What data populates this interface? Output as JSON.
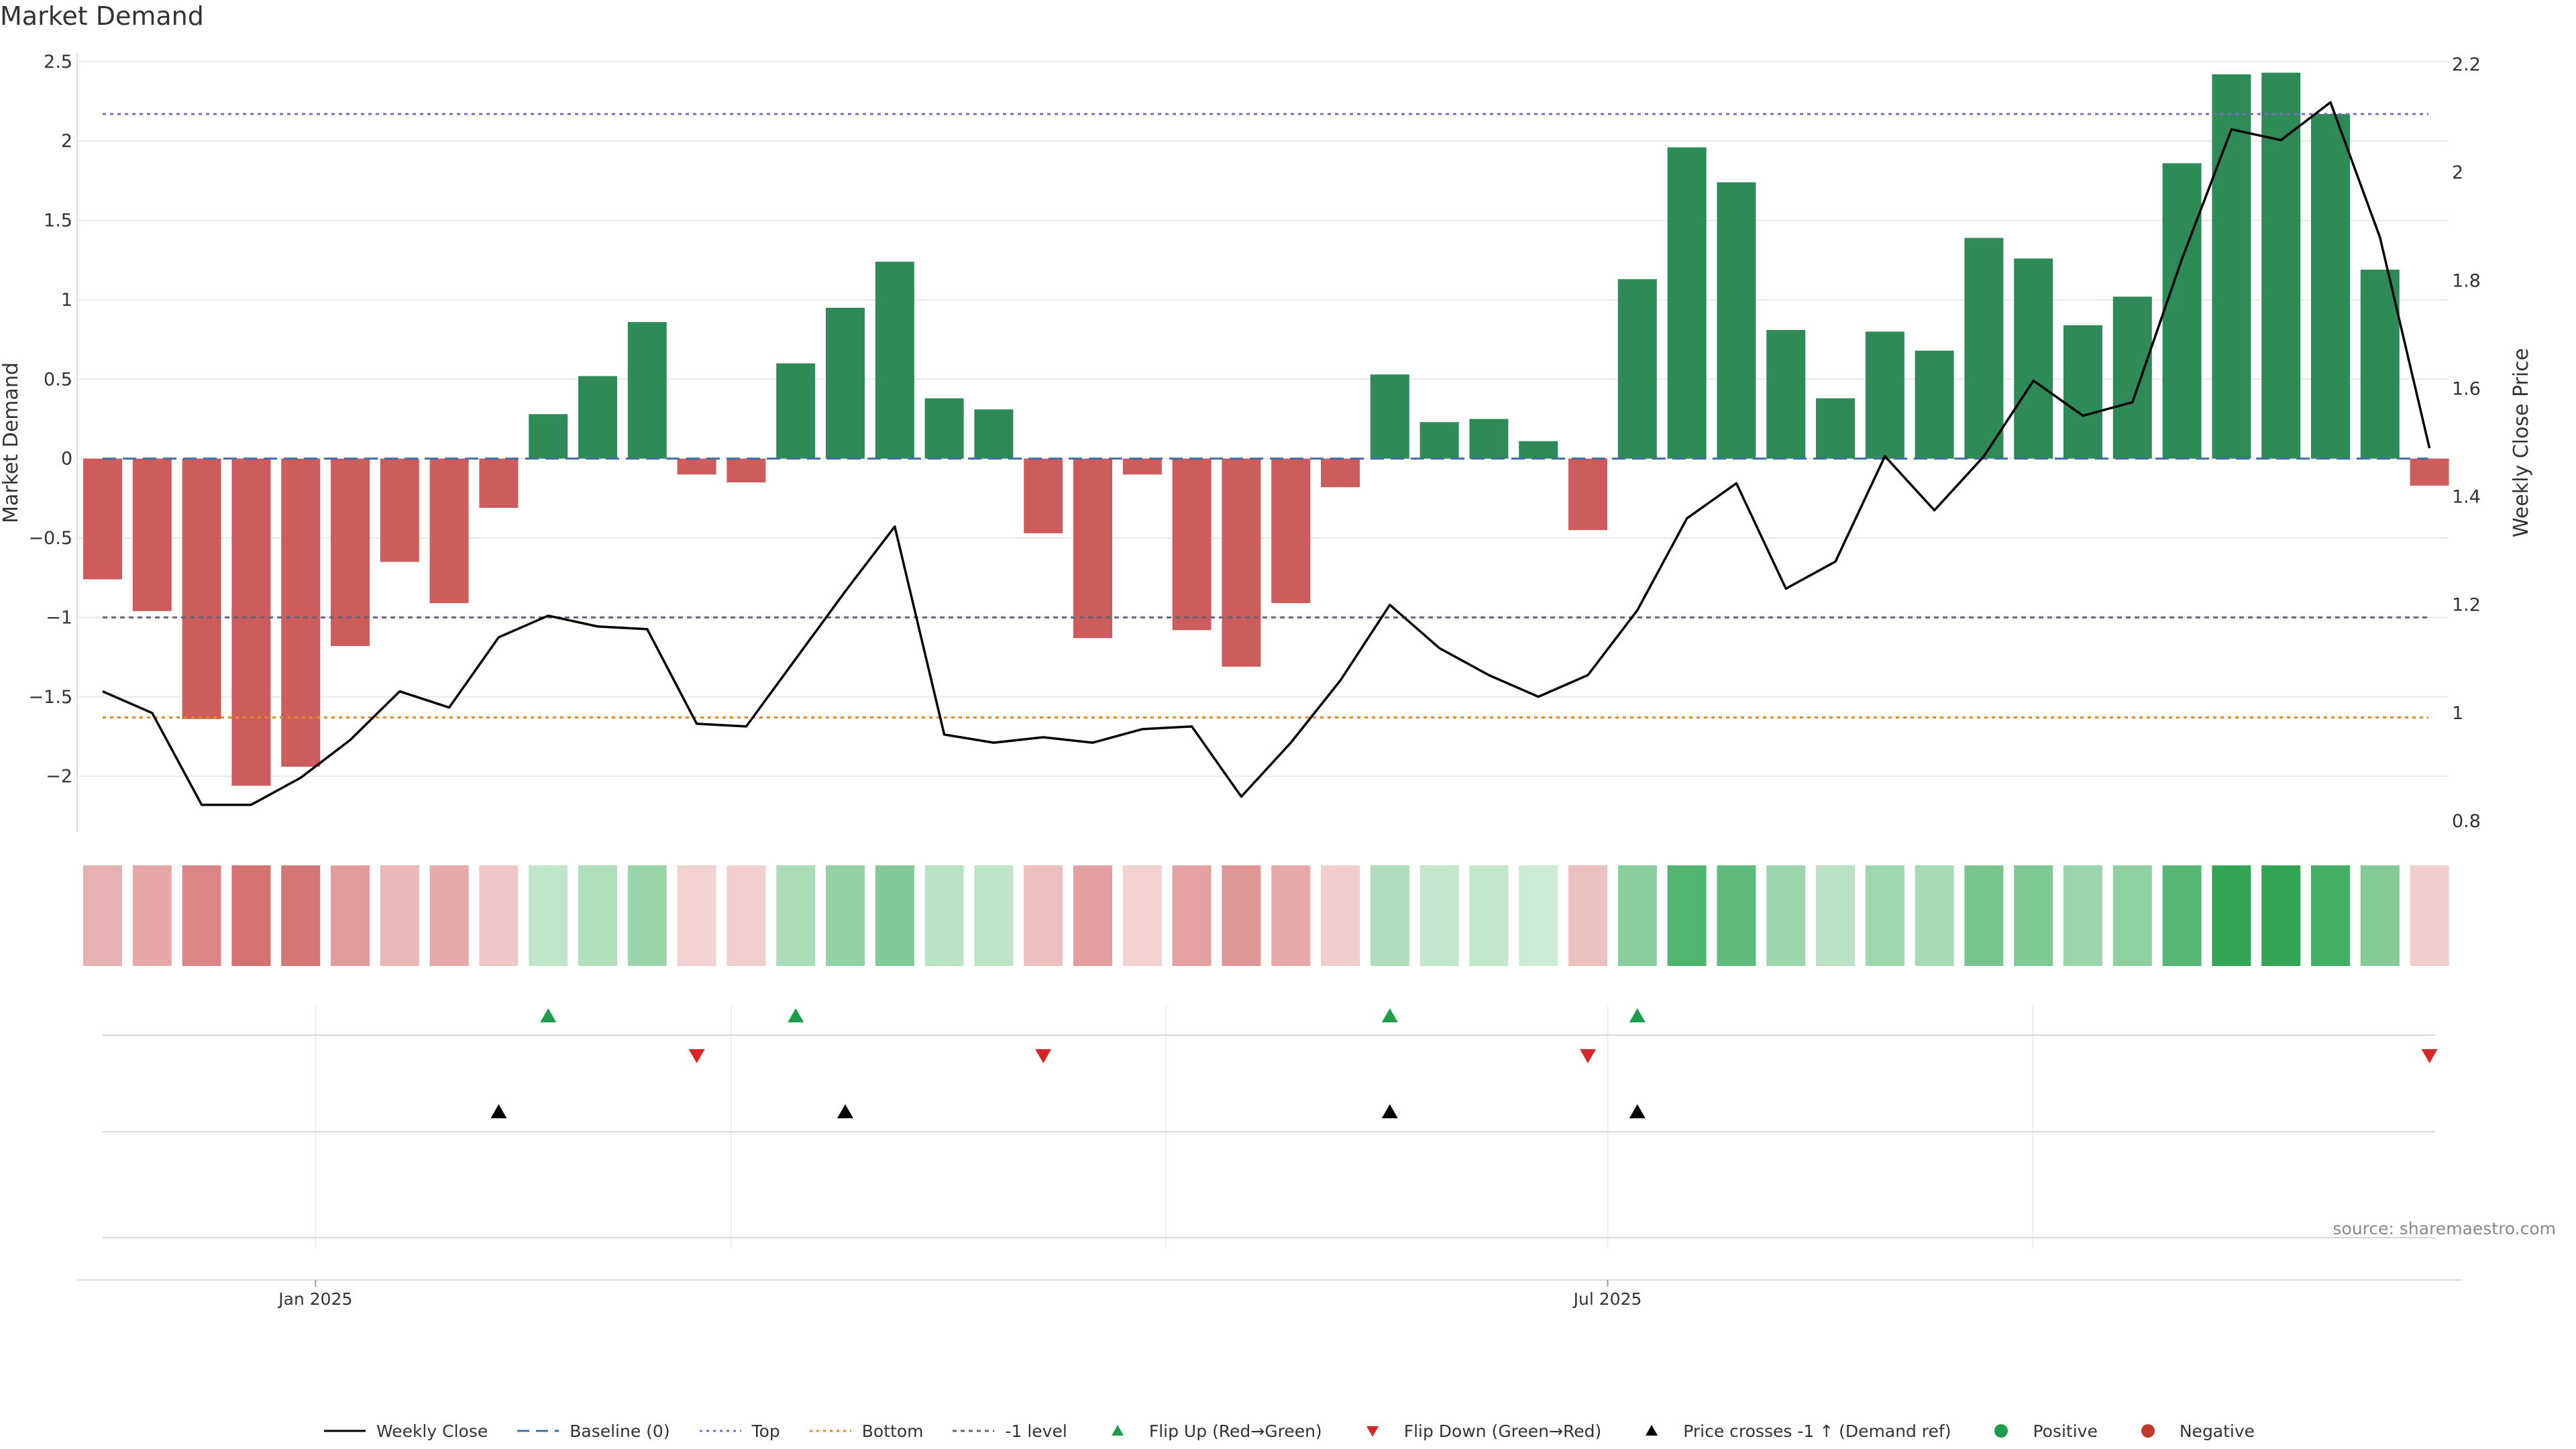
{
  "page": {
    "title": "Market Demand",
    "source": "source: sharemaestro.com"
  },
  "legend": [
    {
      "label": "Weekly Close",
      "kind": "line",
      "color": "#000000",
      "dash": ""
    },
    {
      "label": "Baseline (0)",
      "kind": "line",
      "color": "#3f6fa6",
      "dash": "18,10"
    },
    {
      "label": "Top",
      "kind": "line",
      "color": "#7a6cc4",
      "dash": "4,6"
    },
    {
      "label": "Bottom",
      "kind": "line",
      "color": "#e08a1e",
      "dash": "4,6"
    },
    {
      "label": "-1 level",
      "kind": "line",
      "color": "#666677",
      "dash": "6,6"
    },
    {
      "label": "Flip Up (Red→Green)",
      "kind": "tri-up",
      "color": "#1e9e4c"
    },
    {
      "label": "Flip Down (Green→Red)",
      "kind": "tri-down",
      "color": "#d62728"
    },
    {
      "label": "Price crosses -1 ↑ (Demand ref)",
      "kind": "tri-up",
      "color": "#000000"
    },
    {
      "label": "Positive",
      "kind": "dot",
      "color": "#1e9e4c"
    },
    {
      "label": "Negative",
      "kind": "dot",
      "color": "#c0392b"
    }
  ],
  "chart_data": {
    "type": "bar",
    "title": "Market Demand",
    "ylabel": "Market Demand",
    "y2label": "Weekly Close Price",
    "ylim": [
      -2.35,
      2.55
    ],
    "y2lim": [
      0.78,
      2.22
    ],
    "yticks": [
      "2.5",
      "2",
      "1.5",
      "1",
      "0.5",
      "0",
      "−0.5",
      "−1",
      "−1.5",
      "−2"
    ],
    "ytick_values": [
      2.5,
      2,
      1.5,
      1,
      0.5,
      0,
      -0.5,
      -1,
      -1.5,
      -2
    ],
    "y2ticks": [
      "2.2",
      "2",
      "1.8",
      "1.6",
      "1.4",
      "1.2",
      "1",
      "0.8"
    ],
    "y2tick_values": [
      2.2,
      2.0,
      1.8,
      1.6,
      1.4,
      1.2,
      1.0,
      0.8
    ],
    "xticks": [
      {
        "label": "Jan 2025",
        "week_index": 4.3
      },
      {
        "label": "Jul 2025",
        "week_index": 30.4
      }
    ],
    "x_start": "2024-11-25",
    "x_freq": "weekly",
    "reference_lines": {
      "baseline": 0,
      "top": 2.17,
      "bottom": -1.63,
      "minus_one": -1.0
    },
    "colors": {
      "positive": "#2e8b57",
      "negative": "#cd5c5c"
    },
    "demand": [
      -0.76,
      -0.96,
      -1.64,
      -2.06,
      -1.94,
      -1.18,
      -0.65,
      -0.91,
      -0.31,
      0.28,
      0.52,
      0.86,
      -0.1,
      -0.15,
      0.6,
      0.95,
      1.24,
      0.38,
      0.31,
      -0.47,
      -1.13,
      -0.1,
      -1.08,
      -1.31,
      -0.91,
      -0.18,
      0.53,
      0.23,
      0.25,
      0.11,
      -0.45,
      1.13,
      1.96,
      1.74,
      0.81,
      0.38,
      0.8,
      0.68,
      1.39,
      1.26,
      0.84,
      1.02,
      1.86,
      2.42,
      2.43,
      2.17,
      1.19,
      -0.17
    ],
    "close": [
      1.04,
      1.0,
      0.83,
      0.83,
      0.88,
      0.95,
      1.04,
      1.01,
      1.14,
      1.18,
      1.16,
      1.155,
      0.98,
      0.975,
      1.1,
      1.225,
      1.345,
      0.96,
      0.945,
      0.955,
      0.945,
      0.97,
      0.975,
      0.845,
      0.945,
      1.06,
      1.2,
      1.12,
      1.07,
      1.03,
      1.07,
      1.19,
      1.36,
      1.425,
      1.23,
      1.28,
      1.475,
      1.375,
      1.475,
      1.615,
      1.55,
      1.575,
      1.84,
      2.08,
      2.06,
      2.13,
      1.88,
      1.49
    ],
    "flip_up_index": [
      9,
      14,
      26,
      31
    ],
    "flip_down_index": [
      12,
      19,
      30,
      47
    ],
    "price_cross_index": [
      8,
      15,
      26,
      31
    ]
  }
}
